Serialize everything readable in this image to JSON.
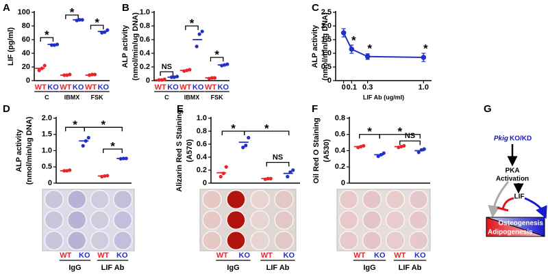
{
  "chart_data": [
    {
      "type": "dot",
      "panel": "A",
      "ylabel": [
        "LIF  (pg/ml)"
      ],
      "categories": [
        "WT",
        "KO",
        "WT",
        "KO",
        "WT",
        "KO"
      ],
      "groups": [
        "C",
        "IBMX",
        "FSK"
      ],
      "colors": [
        "#e8262a",
        "#2230c8",
        "#e8262a",
        "#2230c8",
        "#e8262a",
        "#2230c8"
      ],
      "points": [
        [
          15,
          18,
          22
        ],
        [
          52,
          52,
          53
        ],
        [
          8,
          8,
          9
        ],
        [
          88,
          89,
          89
        ],
        [
          8,
          9,
          9
        ],
        [
          70,
          71,
          74
        ]
      ],
      "means": [
        18,
        53,
        8,
        89,
        8,
        72
      ],
      "ylim": [
        0,
        100
      ],
      "yticks": [
        0,
        20,
        40,
        60,
        80,
        100
      ],
      "annotations": [
        {
          "from": 0,
          "to": 1,
          "y": 63,
          "text": "*"
        },
        {
          "from": 2,
          "to": 3,
          "y": 96,
          "text": "*"
        },
        {
          "from": 4,
          "to": 5,
          "y": 81,
          "text": "*"
        }
      ]
    },
    {
      "type": "dot",
      "panel": "B",
      "ylabel": [
        "ALP activity",
        "(nmol/min/ug DNA)"
      ],
      "categories": [
        "WT",
        "KO",
        "WT",
        "KO",
        "WT",
        "KO"
      ],
      "groups": [
        "C",
        "IBMX",
        "FSK"
      ],
      "colors": [
        "#e8262a",
        "#2230c8",
        "#e8262a",
        "#2230c8",
        "#e8262a",
        "#2230c8"
      ],
      "points": [
        [
          0.01,
          0.01,
          0.02
        ],
        [
          0.05,
          0.05,
          0.06
        ],
        [
          0.14,
          0.15,
          0.16
        ],
        [
          0.5,
          0.68,
          0.72
        ],
        [
          0.03,
          0.04,
          0.04
        ],
        [
          0.22,
          0.23,
          0.24
        ]
      ],
      "means": [
        0.01,
        0.05,
        0.15,
        0.6,
        0.04,
        0.23
      ],
      "ylim": [
        0,
        1
      ],
      "yticks": [
        0,
        0.2,
        0.4,
        0.6,
        0.8,
        {
          "value": 1,
          "label": "1.0"
        }
      ],
      "annotations": [
        {
          "from": 0,
          "to": 1,
          "y": 0.13,
          "text": "NS"
        },
        {
          "from": 2,
          "to": 3,
          "y": 0.8,
          "text": "*"
        },
        {
          "from": 4,
          "to": 5,
          "y": 0.34,
          "text": "*"
        }
      ]
    },
    {
      "type": "line",
      "panel": "C",
      "ylabel": [
        "ALP activity",
        "(nmol/min/ug DNA)"
      ],
      "xlabel": "LIF Ab (ug/ml)",
      "x": [
        0,
        0.1,
        0.3,
        1
      ],
      "values": [
        1.75,
        1.15,
        0.88,
        0.85
      ],
      "errors": [
        0.15,
        0.15,
        0.1,
        0.15
      ],
      "color": "#2230c8",
      "xlim": [
        -0.1,
        1.1
      ],
      "xticks": [
        0,
        0.1,
        0.3,
        {
          "value": 1,
          "label": "1.0"
        }
      ],
      "ylim": [
        0,
        2.5
      ],
      "yticks": [
        0,
        0.5,
        {
          "value": 1,
          "label": "1.0"
        },
        1.5,
        {
          "value": 2,
          "label": "2.0"
        },
        2.5
      ],
      "annotations": [
        {
          "x": 0.1,
          "y": 1.45,
          "text": "*"
        },
        {
          "x": 0.3,
          "y": 1.15,
          "text": "*"
        },
        {
          "x": 1,
          "y": 1.15,
          "text": "*"
        }
      ]
    },
    {
      "type": "dot",
      "panel": "D",
      "ylabel": [
        "ALP activity",
        "(nmol/min/ug DNA)"
      ],
      "categories": [
        "WT",
        "KO",
        "WT",
        "KO"
      ],
      "groups": [
        "IgG",
        "LIF Ab"
      ],
      "colors": [
        "#e8262a",
        "#2230c8",
        "#e8262a",
        "#2230c8"
      ],
      "points": [
        [
          0.38,
          0.38,
          0.4
        ],
        [
          1.15,
          1.3,
          1.4
        ],
        [
          0.2,
          0.22,
          0.23
        ],
        [
          0.75,
          0.76,
          0.76
        ]
      ],
      "means": [
        0.38,
        1.3,
        0.22,
        0.76
      ],
      "ylim": [
        0,
        2
      ],
      "yticks": [
        0,
        0.5,
        {
          "value": 1,
          "label": "1.0"
        },
        1.5,
        {
          "value": 2,
          "label": "2.0"
        }
      ],
      "annotations": [
        {
          "from": 0,
          "to": 1,
          "y": 1.72,
          "text": "*"
        },
        {
          "from": 1,
          "to": 3,
          "y": 1.72,
          "text": "*"
        },
        {
          "from": 2,
          "to": 3,
          "y": 1.05,
          "text": "*"
        }
      ]
    },
    {
      "type": "dot",
      "panel": "E",
      "ylabel": [
        "Alizarin Red S Staining",
        "(A570)"
      ],
      "categories": [
        "WT",
        "KO",
        "WT",
        "KO"
      ],
      "groups": [
        "IgG",
        "LIF Ab"
      ],
      "colors": [
        "#e8262a",
        "#2230c8",
        "#e8262a",
        "#2230c8"
      ],
      "points": [
        [
          0.1,
          0.15,
          0.25
        ],
        [
          0.55,
          0.58,
          0.7
        ],
        [
          0.06,
          0.07,
          0.07
        ],
        [
          0.1,
          0.17,
          0.2
        ]
      ],
      "means": [
        0.16,
        0.63,
        0.07,
        0.15
      ],
      "ylim": [
        0,
        1
      ],
      "yticks": [
        0,
        0.2,
        0.4,
        0.6,
        0.8,
        {
          "value": 1,
          "label": "1.0"
        }
      ],
      "annotations": [
        {
          "from": 0,
          "to": 1,
          "y": 0.8,
          "text": "*"
        },
        {
          "from": 1,
          "to": 3,
          "y": 0.8,
          "text": "*"
        },
        {
          "from": 2,
          "to": 3,
          "y": 0.32,
          "text": "NS"
        }
      ]
    },
    {
      "type": "dot",
      "panel": "F",
      "ylabel": [
        "Oil Red O Staining",
        "(A530)"
      ],
      "categories": [
        "WT",
        "KO",
        "WT",
        "KO"
      ],
      "groups": [
        "IgG",
        "LIF Ab"
      ],
      "colors": [
        "#e8262a",
        "#2230c8",
        "#e8262a",
        "#2230c8"
      ],
      "points": [
        [
          0.44,
          0.45,
          0.46
        ],
        [
          0.33,
          0.35,
          0.37
        ],
        [
          0.44,
          0.45,
          0.46
        ],
        [
          0.38,
          0.41,
          0.42
        ]
      ],
      "means": [
        0.45,
        0.35,
        0.45,
        0.4
      ],
      "ylim": [
        0,
        0.8
      ],
      "yticks": [
        0,
        0.2,
        0.4,
        0.6,
        0.8
      ],
      "annotations": [
        {
          "from": 0,
          "to": 1,
          "y": 0.6,
          "text": "*"
        },
        {
          "from": 1,
          "to": 3,
          "y": 0.6,
          "text": "*"
        },
        {
          "from": 2,
          "to": 3,
          "y": 0.52,
          "text": "NS"
        }
      ]
    }
  ],
  "diagram": {
    "panel": "G",
    "gene": "Pkig",
    "gene_suffix": "KO/KD",
    "node1": [
      "PKA",
      "Activation"
    ],
    "node2": "LIF",
    "right_outcome": "Osteogenesis",
    "left_outcome": "Adipogenesis"
  }
}
